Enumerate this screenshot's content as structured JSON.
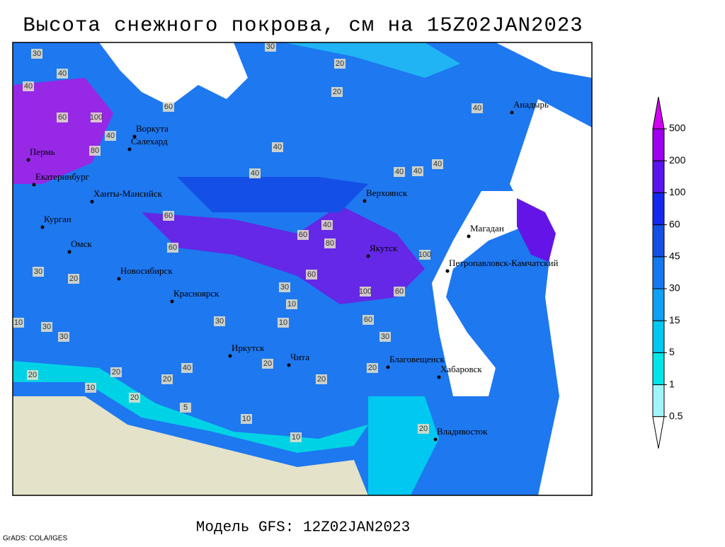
{
  "title": "Высота снежного покрова, см на 15Z02JAN2023",
  "footer": "Модель GFS: 12Z02JAN2023",
  "credit": "GrADS: COLA/IGES",
  "cities": [
    "Воркута",
    "Салехард",
    "Пермь",
    "Екатеринбург",
    "Ханты-Мансийск",
    "Курган",
    "Омск",
    "Новосибирск",
    "Красноярск",
    "Иркутск",
    "Чита",
    "Благовещенск",
    "Хабаровск",
    "Владивосток",
    "Якутск",
    "Верхоянск",
    "Магадан",
    "Петропавловск-Камчатский",
    "Анадырь"
  ],
  "contour_labels": [
    "30",
    "40",
    "30",
    "20",
    "20",
    "40",
    "60",
    "100",
    "80",
    "40",
    "60",
    "40",
    "40",
    "40",
    "40",
    "60",
    "60",
    "60",
    "40",
    "80",
    "100",
    "60",
    "100",
    "60",
    "60",
    "30",
    "30",
    "20",
    "20",
    "30",
    "10",
    "10",
    "20",
    "20",
    "20",
    "40",
    "30",
    "30",
    "10",
    "10",
    "20",
    "10",
    "20",
    "30",
    "40",
    "40",
    "20",
    "10",
    "5",
    "20"
  ],
  "legend": {
    "levels": [
      0.5,
      1,
      5,
      15,
      30,
      45,
      60,
      100,
      200,
      500
    ],
    "colors": [
      "#ffffff",
      "#a0f5fa",
      "#00e6e6",
      "#00c8f0",
      "#10a0f5",
      "#1478f0",
      "#1450e6",
      "#1428f0",
      "#5a14f0",
      "#a000f0",
      "#d200f0"
    ]
  }
}
